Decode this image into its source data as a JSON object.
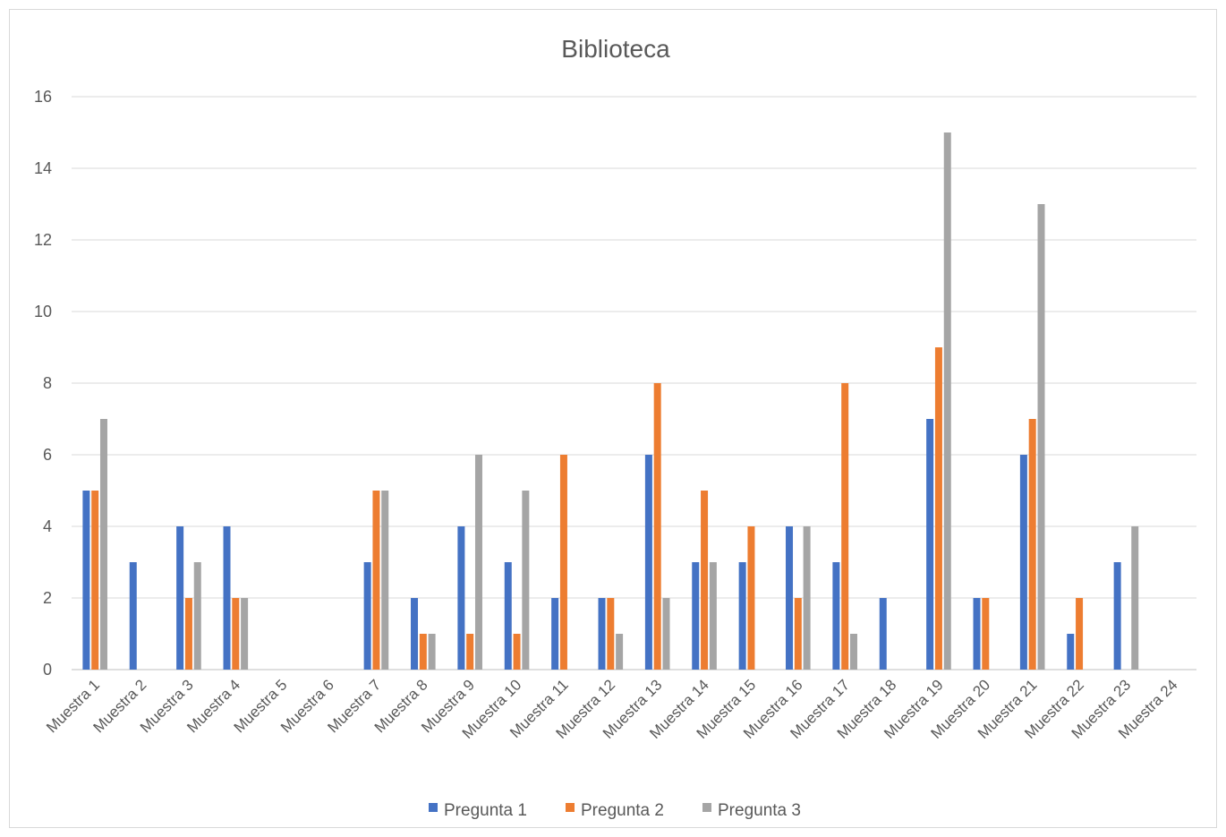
{
  "chart_data": {
    "type": "bar",
    "title": "Biblioteca",
    "categories": [
      "Muestra 1",
      "Muestra 2",
      "Muestra 3",
      "Muestra 4",
      "Muestra 5",
      "Muestra 6",
      "Muestra 7",
      "Muestra 8",
      "Muestra 9",
      "Muestra 10",
      "Muestra 11",
      "Muestra 12",
      "Muestra 13",
      "Muestra 14",
      "Muestra 15",
      "Muestra 16",
      "Muestra 17",
      "Muestra 18",
      "Muestra 19",
      "Muestra 20",
      "Muestra 21",
      "Muestra 22",
      "Muestra 23",
      "Muestra 24"
    ],
    "series": [
      {
        "name": "Pregunta 1",
        "color": "#4472c4",
        "values": [
          5,
          3,
          4,
          4,
          0,
          0,
          3,
          2,
          4,
          3,
          2,
          2,
          6,
          3,
          3,
          4,
          3,
          2,
          7,
          2,
          6,
          1,
          3,
          0
        ]
      },
      {
        "name": "Pregunta 2",
        "color": "#ed7d31",
        "values": [
          5,
          0,
          2,
          2,
          0,
          0,
          5,
          1,
          1,
          1,
          6,
          2,
          8,
          5,
          4,
          2,
          8,
          0,
          9,
          2,
          7,
          2,
          0,
          0
        ]
      },
      {
        "name": "Pregunta 3",
        "color": "#a5a5a5",
        "values": [
          7,
          0,
          3,
          2,
          0,
          0,
          5,
          1,
          6,
          5,
          0,
          1,
          2,
          3,
          0,
          4,
          1,
          0,
          15,
          0,
          13,
          0,
          4,
          0
        ]
      }
    ],
    "ylim": [
      0,
      16
    ],
    "yticks": [
      "0",
      "2",
      "4",
      "6",
      "8",
      "10",
      "12",
      "14",
      "16"
    ],
    "grid": true,
    "legend_position": "bottom"
  }
}
